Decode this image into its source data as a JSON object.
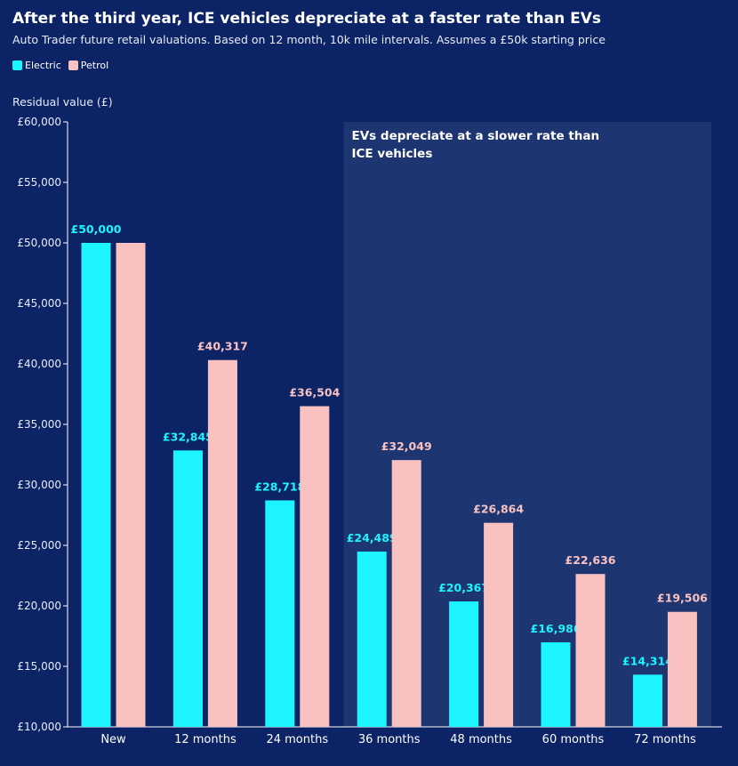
{
  "chart_data": {
    "type": "bar",
    "title": "After the third year, ICE vehicles depreciate at a faster rate than EVs",
    "subtitle": "Auto Trader future retail valuations. Based on 12 month, 10k mile intervals. Assumes a £50k starting price",
    "ylabel": "Residual value (£)",
    "xlabel": "",
    "categories": [
      "New",
      "12 months",
      "24 months",
      "36 months",
      "48 months",
      "60 months",
      "72 months"
    ],
    "series": [
      {
        "name": "Electric",
        "color": "#1cf5ff",
        "values": [
          50000,
          32845,
          28718,
          24489,
          20367,
          16986,
          14314
        ],
        "labels": [
          "£50,000",
          "£32,845",
          "£28,718",
          "£24,489",
          "£20,367",
          "£16,986",
          "£14,314"
        ]
      },
      {
        "name": "Petrol",
        "color": "#f9c2c0",
        "values": [
          50000,
          40317,
          36504,
          32049,
          26864,
          22636,
          19506
        ],
        "labels": [
          "",
          "£40,317",
          "£36,504",
          "£32,049",
          "£26,864",
          "£22,636",
          "£19,506"
        ]
      }
    ],
    "ylim": [
      10000,
      60000
    ],
    "yticks": [
      10000,
      15000,
      20000,
      25000,
      30000,
      35000,
      40000,
      45000,
      50000,
      55000,
      60000
    ],
    "ytick_labels": [
      "£10,000",
      "£15,000",
      "£20,000",
      "£25,000",
      "£30,000",
      "£35,000",
      "£40,000",
      "£45,000",
      "£50,000",
      "£55,000",
      "£60,000"
    ],
    "grid": false,
    "legend_position": "top-left",
    "annotation": {
      "lines": [
        "EVs depreciate at a slower rate than",
        "ICE vehicles"
      ],
      "from_category": "36 months",
      "to_category": "72 months"
    },
    "colors": {
      "background": "#0c2366",
      "highlight_region": "#1d3570",
      "axis": "#ffffff"
    }
  }
}
